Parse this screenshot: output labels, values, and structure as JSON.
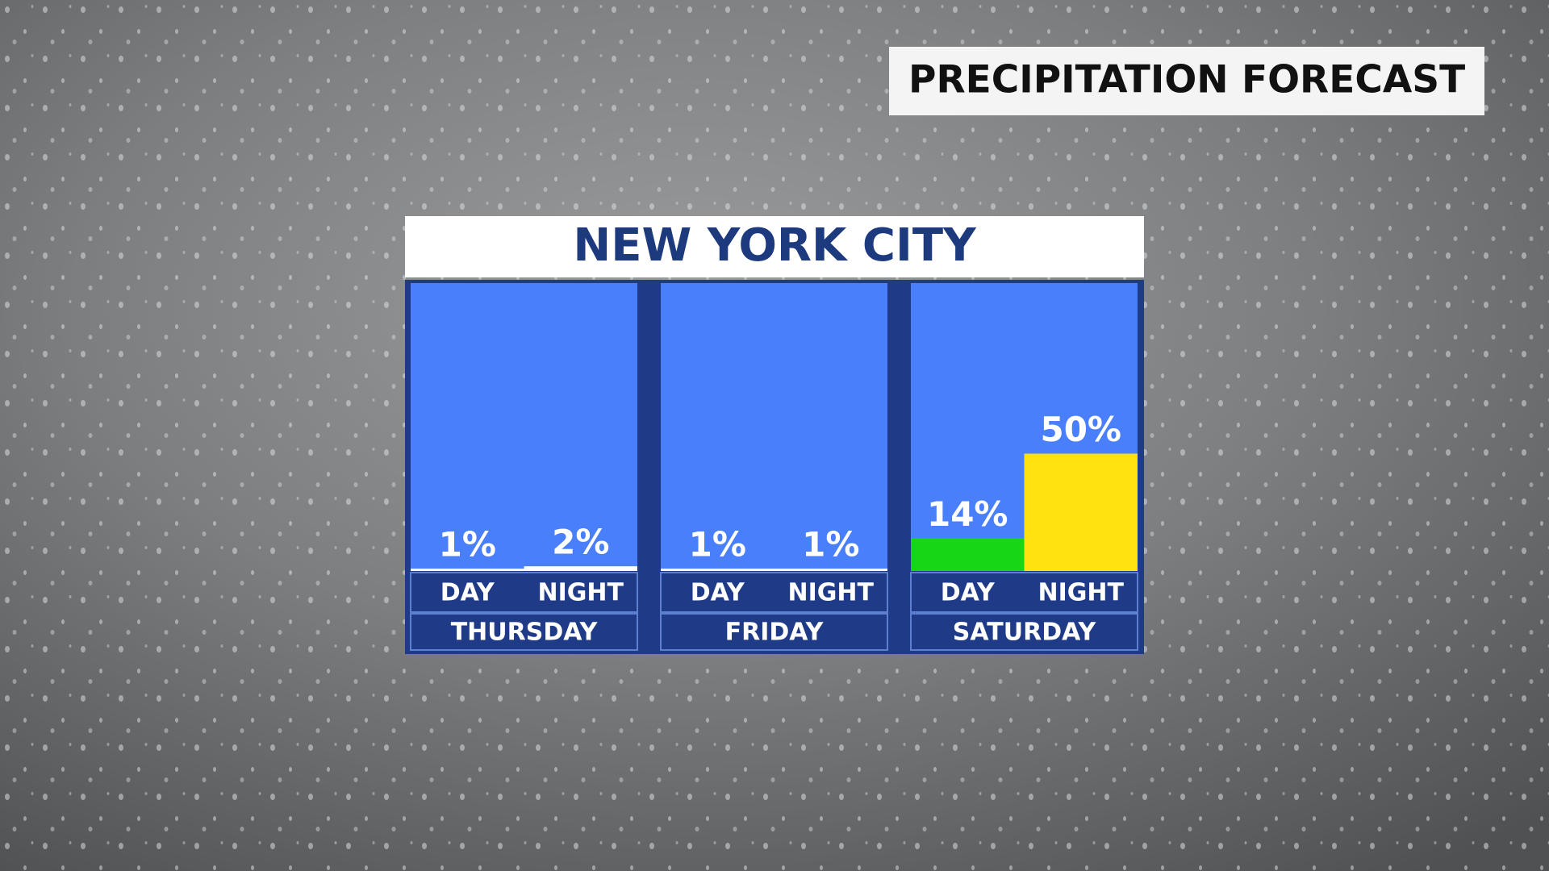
{
  "header": {
    "title": "PRECIPITATION FORECAST"
  },
  "chart_data": {
    "type": "bar",
    "title": "NEW YORK CITY",
    "groups": [
      "THURSDAY",
      "FRIDAY",
      "SATURDAY"
    ],
    "categories": [
      "DAY",
      "NIGHT",
      "DAY",
      "NIGHT",
      "DAY",
      "NIGHT"
    ],
    "values": [
      1,
      2,
      1,
      1,
      14,
      50
    ],
    "value_labels": [
      "1%",
      "2%",
      "1%",
      "1%",
      "14%",
      "50%"
    ],
    "colors": [
      "#ffffff",
      "#ffffff",
      "#ffffff",
      "#ffffff",
      "#16d616",
      "#ffe20f"
    ],
    "ylim": [
      0,
      100
    ]
  }
}
